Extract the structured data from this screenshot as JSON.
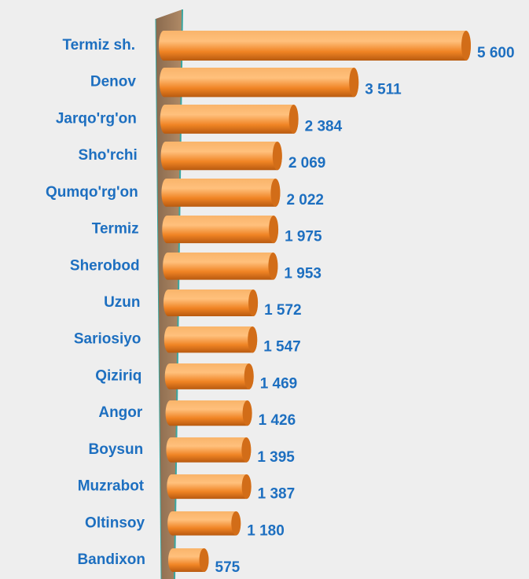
{
  "chart_data": {
    "type": "bar",
    "orientation": "horizontal",
    "categories": [
      "Termiz sh.",
      "Denov",
      "Jarqo'rg'on",
      "Sho'rchi",
      "Qumqo'rg'on",
      "Termiz",
      "Sherobod",
      "Uzun",
      "Sariosiyo",
      "Qiziriq",
      "Angor",
      "Boysun",
      "Muzrabot",
      "Oltinsoy",
      "Bandixon"
    ],
    "values": [
      5600,
      3511,
      2384,
      2069,
      2022,
      1975,
      1953,
      1572,
      1547,
      1469,
      1426,
      1395,
      1387,
      1180,
      575
    ],
    "value_labels": [
      "5 600",
      "3 511",
      "2 384",
      "2 069",
      "2 022",
      "1 975",
      "1 953",
      "1 572",
      "1 547",
      "1 469",
      "1 426",
      "1 395",
      "1 387",
      "1 180",
      "575"
    ],
    "color": "#f28a2a"
  }
}
